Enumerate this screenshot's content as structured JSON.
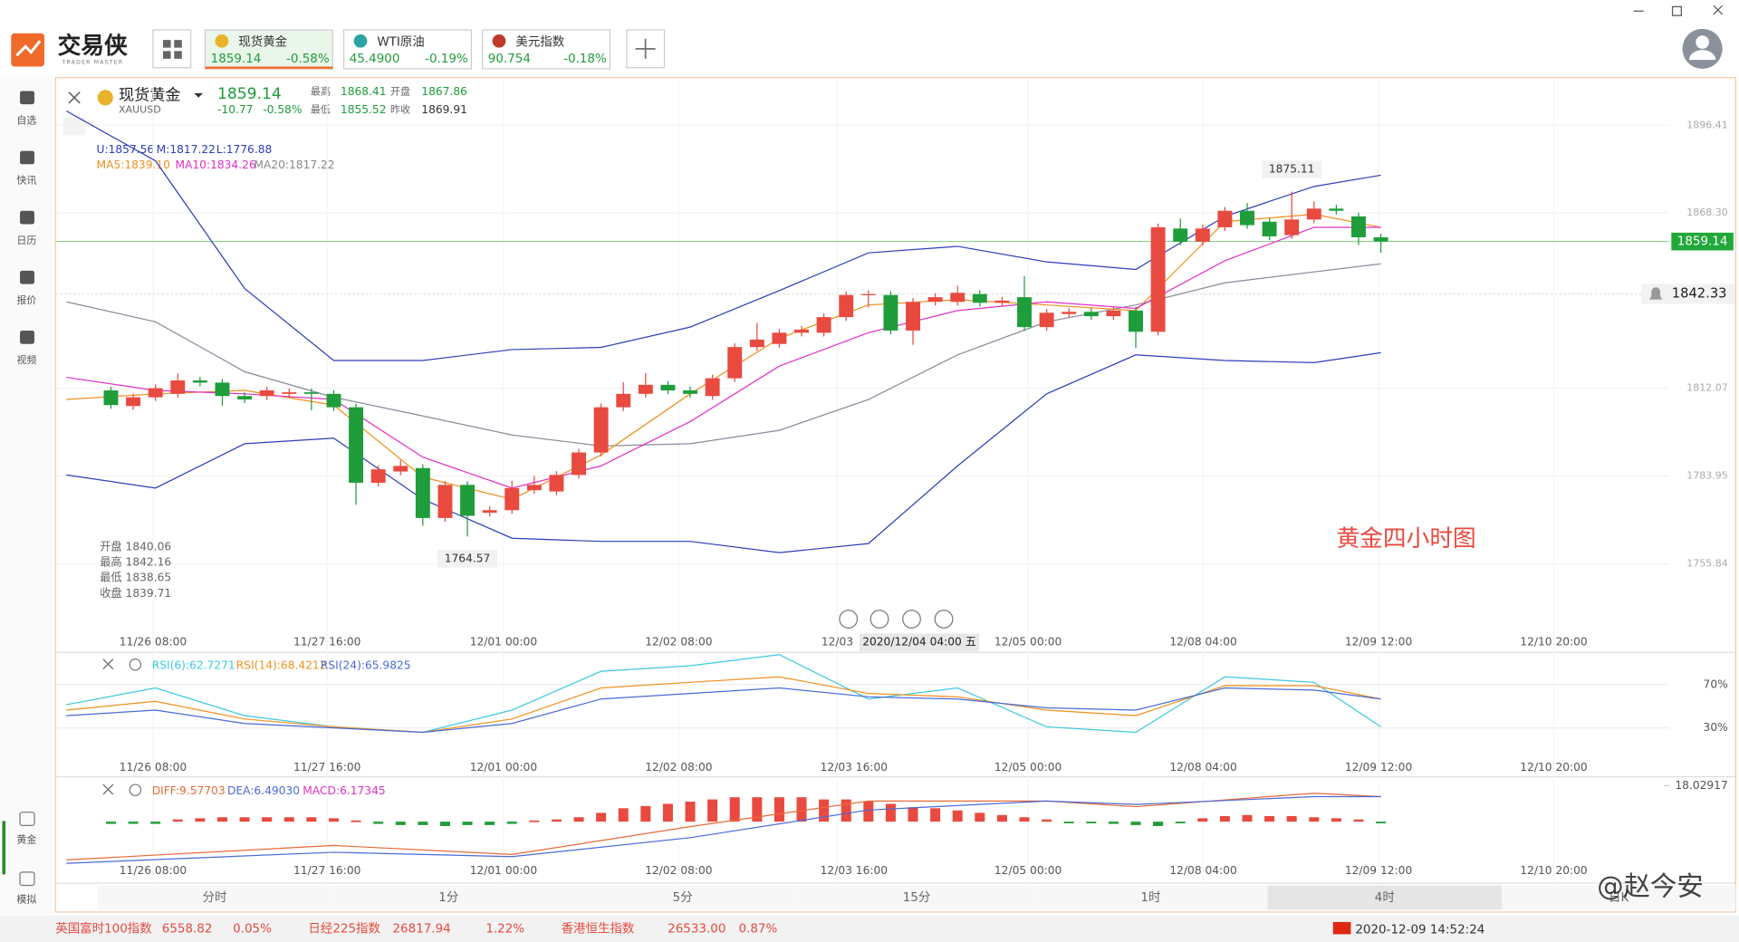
{
  "app": {
    "logo": "交易侠",
    "logo_sub": "TRADER MASTER"
  },
  "tabs": [
    {
      "name": "现货黄金",
      "price": "1859.14",
      "change": "-0.58%"
    },
    {
      "name": "WTI原油",
      "price": "45.4900",
      "change": "-0.19%"
    },
    {
      "name": "美元指数",
      "price": "90.754",
      "change": "-0.18%"
    }
  ],
  "sidebar": [
    "自选",
    "快讯",
    "日历",
    "报价",
    "视频"
  ],
  "sidebar_bottom": [
    "黄金",
    "模拟"
  ],
  "header": {
    "symbol": "现货黄金",
    "code": "XAUUSD",
    "price": "1859.14",
    "change": "-10.77",
    "pct": "-0.58%",
    "high_label": "最高",
    "high": "1868.41",
    "open_label": "开盘",
    "open": "1867.86",
    "low_label": "最低",
    "low": "1855.52",
    "prev_label": "昨收",
    "prev": "1869.91"
  },
  "legend": {
    "boll": [
      "U:1857.56",
      "M:1817.22",
      "L:1776.88"
    ],
    "ma": [
      "MA5:1839.10",
      "MA10:1834.26",
      "MA20:1817.22"
    ]
  },
  "ohlc_box": [
    "开盘 1840.06",
    "最高 1842.16",
    "最低 1838.65",
    "收盘 1839.71"
  ],
  "chart": {
    "type": "candlestick",
    "ylim": [
      1733.8,
      1909.9
    ],
    "xlim": [
      -2.49,
      69.69
    ],
    "yticks": [
      1896.41,
      {
        "value": 1868.3,
        "label": "1868.30"
      },
      1812.07,
      1783.95,
      1755.84
    ],
    "last_price": 1859.14,
    "last_price_label": "1859.14",
    "alert_price": 1842.33,
    "alert_label": "1842.33",
    "high_note": "1875.11",
    "low_note": "1764.57",
    "note": "黄金四小时图",
    "candles": [
      {
        "o": 1811.4,
        "h": 1812.6,
        "l": 1805.5,
        "c": 1806.7
      },
      {
        "o": 1806.4,
        "h": 1810.4,
        "l": 1805.2,
        "c": 1809.2
      },
      {
        "o": 1809.2,
        "h": 1813.3,
        "l": 1808.0,
        "c": 1812.1
      },
      {
        "o": 1810.3,
        "h": 1816.8,
        "l": 1809.1,
        "c": 1814.6
      },
      {
        "o": 1814.6,
        "h": 1815.8,
        "l": 1812.7,
        "c": 1813.9
      },
      {
        "o": 1813.9,
        "h": 1815.1,
        "l": 1806.5,
        "c": 1809.6
      },
      {
        "o": 1809.6,
        "h": 1810.8,
        "l": 1807.3,
        "c": 1808.5
      },
      {
        "o": 1809.6,
        "h": 1812.6,
        "l": 1808.4,
        "c": 1811.4
      },
      {
        "o": 1810.3,
        "h": 1812.0,
        "l": 1809.1,
        "c": 1810.8
      },
      {
        "o": 1810.8,
        "h": 1812.0,
        "l": 1805.0,
        "c": 1810.3
      },
      {
        "o": 1810.3,
        "h": 1811.5,
        "l": 1804.8,
        "c": 1806.0
      },
      {
        "o": 1806.0,
        "h": 1807.2,
        "l": 1774.7,
        "c": 1781.8
      },
      {
        "o": 1781.8,
        "h": 1787.3,
        "l": 1780.6,
        "c": 1786.1
      },
      {
        "o": 1785.4,
        "h": 1789.0,
        "l": 1784.2,
        "c": 1787.2
      },
      {
        "o": 1786.5,
        "h": 1787.7,
        "l": 1768.0,
        "c": 1770.5
      },
      {
        "o": 1770.5,
        "h": 1782.3,
        "l": 1769.3,
        "c": 1781.1
      },
      {
        "o": 1781.1,
        "h": 1782.3,
        "l": 1764.57,
        "c": 1771.2
      },
      {
        "o": 1772.2,
        "h": 1774.2,
        "l": 1771.0,
        "c": 1773.0
      },
      {
        "o": 1773.0,
        "h": 1782.5,
        "l": 1771.8,
        "c": 1780.1
      },
      {
        "o": 1779.4,
        "h": 1784.0,
        "l": 1778.2,
        "c": 1781.1
      },
      {
        "o": 1779.0,
        "h": 1785.5,
        "l": 1777.8,
        "c": 1784.3
      },
      {
        "o": 1784.3,
        "h": 1792.7,
        "l": 1783.1,
        "c": 1791.5
      },
      {
        "o": 1791.5,
        "h": 1807.2,
        "l": 1790.3,
        "c": 1806.0
      },
      {
        "o": 1806.0,
        "h": 1814.0,
        "l": 1804.8,
        "c": 1810.3
      },
      {
        "o": 1810.3,
        "h": 1817.0,
        "l": 1809.1,
        "c": 1813.2
      },
      {
        "o": 1813.2,
        "h": 1814.4,
        "l": 1810.2,
        "c": 1811.4
      },
      {
        "o": 1811.4,
        "h": 1812.6,
        "l": 1809.1,
        "c": 1810.3
      },
      {
        "o": 1809.6,
        "h": 1816.5,
        "l": 1808.4,
        "c": 1815.3
      },
      {
        "o": 1815.3,
        "h": 1826.5,
        "l": 1814.1,
        "c": 1825.3
      },
      {
        "o": 1825.3,
        "h": 1833.0,
        "l": 1824.1,
        "c": 1827.7
      },
      {
        "o": 1826.3,
        "h": 1831.1,
        "l": 1825.1,
        "c": 1829.9
      },
      {
        "o": 1829.9,
        "h": 1832.1,
        "l": 1828.7,
        "c": 1830.9
      },
      {
        "o": 1829.9,
        "h": 1836.1,
        "l": 1828.7,
        "c": 1834.9
      },
      {
        "o": 1834.9,
        "h": 1843.2,
        "l": 1833.7,
        "c": 1842.0
      },
      {
        "o": 1842.0,
        "h": 1843.5,
        "l": 1838.0,
        "c": 1842.3
      },
      {
        "o": 1842.0,
        "h": 1843.2,
        "l": 1829.4,
        "c": 1830.6
      },
      {
        "o": 1830.6,
        "h": 1841.0,
        "l": 1826.0,
        "c": 1839.8
      },
      {
        "o": 1839.8,
        "h": 1842.5,
        "l": 1838.6,
        "c": 1841.3
      },
      {
        "o": 1839.8,
        "h": 1845.0,
        "l": 1838.6,
        "c": 1842.7
      },
      {
        "o": 1842.3,
        "h": 1843.5,
        "l": 1838.3,
        "c": 1839.5
      },
      {
        "o": 1839.5,
        "h": 1841.4,
        "l": 1838.3,
        "c": 1840.2
      },
      {
        "o": 1841.3,
        "h": 1848.0,
        "l": 1830.5,
        "c": 1831.7
      },
      {
        "o": 1831.7,
        "h": 1837.5,
        "l": 1830.5,
        "c": 1836.3
      },
      {
        "o": 1835.9,
        "h": 1837.8,
        "l": 1834.7,
        "c": 1836.6
      },
      {
        "o": 1836.6,
        "h": 1837.8,
        "l": 1834.0,
        "c": 1835.2
      },
      {
        "o": 1835.2,
        "h": 1838.2,
        "l": 1834.0,
        "c": 1837.0
      },
      {
        "o": 1837.0,
        "h": 1838.2,
        "l": 1825.0,
        "c": 1830.2
      },
      {
        "o": 1830.2,
        "h": 1864.9,
        "l": 1829.0,
        "c": 1863.7
      },
      {
        "o": 1863.3,
        "h": 1866.5,
        "l": 1857.9,
        "c": 1859.1
      },
      {
        "o": 1859.1,
        "h": 1864.5,
        "l": 1857.9,
        "c": 1863.3
      },
      {
        "o": 1863.7,
        "h": 1870.2,
        "l": 1862.5,
        "c": 1869.0
      },
      {
        "o": 1869.0,
        "h": 1871.5,
        "l": 1863.2,
        "c": 1864.4
      },
      {
        "o": 1865.5,
        "h": 1866.7,
        "l": 1859.6,
        "c": 1860.8
      },
      {
        "o": 1861.2,
        "h": 1875.11,
        "l": 1860.0,
        "c": 1866.2
      },
      {
        "o": 1866.2,
        "h": 1872.0,
        "l": 1865.0,
        "c": 1869.7
      },
      {
        "o": 1869.7,
        "h": 1870.9,
        "l": 1867.8,
        "c": 1869.0
      },
      {
        "o": 1867.2,
        "h": 1868.4,
        "l": 1858.0,
        "c": 1860.5
      },
      {
        "o": 1860.5,
        "h": 1861.7,
        "l": 1855.52,
        "c": 1859.14
      }
    ],
    "overlay_x": [
      -2,
      2,
      6,
      10,
      14,
      18,
      22,
      26,
      30,
      34,
      38,
      42,
      46,
      50,
      54,
      57
    ],
    "overlays": [
      {
        "name": "U",
        "color": "#2c3fb8",
        "values": [
          1901.0,
          1885.0,
          1844.1,
          1821.0,
          1821.0,
          1824.5,
          1825.2,
          1831.7,
          1843.4,
          1855.5,
          1857.6,
          1852.6,
          1850.2,
          1867.2,
          1876.8,
          1880.4
        ]
      },
      {
        "name": "M",
        "color": "#8a8a9a",
        "values": [
          1839.8,
          1833.4,
          1817.4,
          1809.2,
          1803.2,
          1797.1,
          1793.6,
          1794.3,
          1798.6,
          1808.5,
          1822.8,
          1833.4,
          1838.8,
          1845.9,
          1849.4,
          1852.0
        ]
      },
      {
        "name": "L",
        "color": "#2c3fb8",
        "values": [
          1784.3,
          1780.1,
          1794.3,
          1796.1,
          1776.5,
          1764.0,
          1763.0,
          1763.0,
          1759.4,
          1762.3,
          1787.2,
          1810.3,
          1822.8,
          1821.0,
          1820.3,
          1823.5
        ]
      },
      {
        "name": "MA5",
        "color": "#f0901e",
        "values": [
          1808.5,
          1810.3,
          1811.4,
          1806.7,
          1783.6,
          1776.5,
          1790.7,
          1810.3,
          1828.1,
          1838.8,
          1840.5,
          1838.8,
          1837.0,
          1865.5,
          1867.9,
          1863.7
        ]
      },
      {
        "name": "MA10",
        "color": "#e030c8",
        "values": [
          1815.6,
          1811.4,
          1810.3,
          1808.5,
          1790.0,
          1780.1,
          1787.2,
          1801.4,
          1819.2,
          1829.9,
          1837.0,
          1839.8,
          1837.7,
          1853.0,
          1863.7,
          1863.7
        ]
      }
    ],
    "time_labels": [
      "11/26 08:00",
      "11/27 16:00",
      "12/01 00:00",
      "12/02 08:00",
      "12/03",
      "12/05 00:00",
      "12/08 04:00",
      "12/09 12:00",
      "12/10 20:00"
    ],
    "cursor_time": "2020/12/04 04:00 五"
  },
  "rsi": {
    "type": "line",
    "ylim": [
      -12,
      100
    ],
    "yticks": [
      {
        "value": 70,
        "label": "70%"
      },
      {
        "value": 30,
        "label": "30%"
      }
    ],
    "legend": [
      "RSI(6):62.7271",
      "RSI(14):68.4212",
      "RSI(24):65.9825"
    ],
    "series": [
      {
        "name": "RSI(6)",
        "color": "#3cc8e0",
        "values": [
          51.5,
          66.9,
          41.3,
          31.0,
          25.9,
          46.4,
          82.3,
          87.4,
          97.7,
          56.7,
          66.9,
          31.0,
          25.9,
          77.2,
          72.1,
          31.0
        ]
      },
      {
        "name": "RSI(14)",
        "color": "#f0901e",
        "values": [
          46.4,
          54.6,
          38.2,
          31.0,
          25.9,
          38.2,
          66.9,
          72.1,
          77.2,
          61.8,
          58.7,
          46.4,
          41.3,
          69.0,
          69.0,
          56.7
        ]
      },
      {
        "name": "RSI(24)",
        "color": "#4a6ad8",
        "values": [
          41.3,
          46.4,
          34.1,
          30.0,
          25.9,
          34.1,
          56.7,
          61.8,
          66.9,
          58.7,
          56.7,
          48.5,
          46.4,
          66.9,
          64.9,
          56.7
        ]
      }
    ]
  },
  "macd": {
    "type": "bar",
    "ylim": [
      -30.2,
      19.7
    ],
    "yticks": [
      18.02917
    ],
    "legend": [
      "DIFF:9.57703",
      "DEA:6.49030",
      "MACD:6.17345"
    ],
    "histogram": [
      -1.1,
      -1.1,
      -1.1,
      1.1,
      1.7,
      2.2,
      2.2,
      2.2,
      2.2,
      2.2,
      1.7,
      0.6,
      -1.1,
      -1.7,
      -1.7,
      -2.2,
      -1.7,
      -1.7,
      -1.1,
      0.6,
      1.1,
      2.2,
      4.4,
      6.7,
      7.8,
      8.9,
      10.0,
      11.1,
      12.2,
      12.2,
      12.2,
      12.2,
      11.1,
      11.1,
      10.0,
      8.9,
      7.2,
      6.7,
      5.6,
      4.4,
      3.3,
      2.2,
      1.1,
      -0.6,
      -0.6,
      -1.1,
      -1.7,
      -2.2,
      -0.6,
      1.7,
      2.8,
      3.3,
      2.8,
      2.8,
      2.2,
      1.7,
      1.1,
      -0.6
    ],
    "line_x": [
      -2,
      10,
      18,
      26,
      34,
      42,
      46,
      54,
      57
    ],
    "lines": [
      {
        "name": "DIFF",
        "color": "#e86a3a",
        "values": [
          -19.1,
          -11.9,
          -16.4,
          -2.5,
          10.3,
          10.3,
          7.5,
          14.2,
          12.5
        ]
      },
      {
        "name": "DEA",
        "color": "#4a6ad8",
        "values": [
          -20.8,
          -15.3,
          -17.5,
          -8.0,
          5.8,
          10.3,
          8.6,
          12.5,
          12.5
        ]
      }
    ]
  },
  "panel_time_labels": [
    "11/26 08:00",
    "11/27 16:00",
    "12/01 00:00",
    "12/02 08:00",
    "12/03 16:00",
    "12/05 00:00",
    "12/08 04:00",
    "12/09 12:00",
    "12/10 20:00"
  ],
  "periods": [
    "分时",
    "1分",
    "5分",
    "15分",
    "1时",
    "4时",
    "日K"
  ],
  "active_period": 5,
  "ticker": [
    {
      "name": "英国富时100指数",
      "price": "6558.82",
      "change": "0.05%"
    },
    {
      "name": "日经225指数",
      "price": "26817.94",
      "change": "1.22%"
    },
    {
      "name": "香港恒生指数",
      "price": "26533.00",
      "change": "0.87%"
    }
  ],
  "datetime": "2020-12-09 14:52:24",
  "watermark": "@赵今安"
}
